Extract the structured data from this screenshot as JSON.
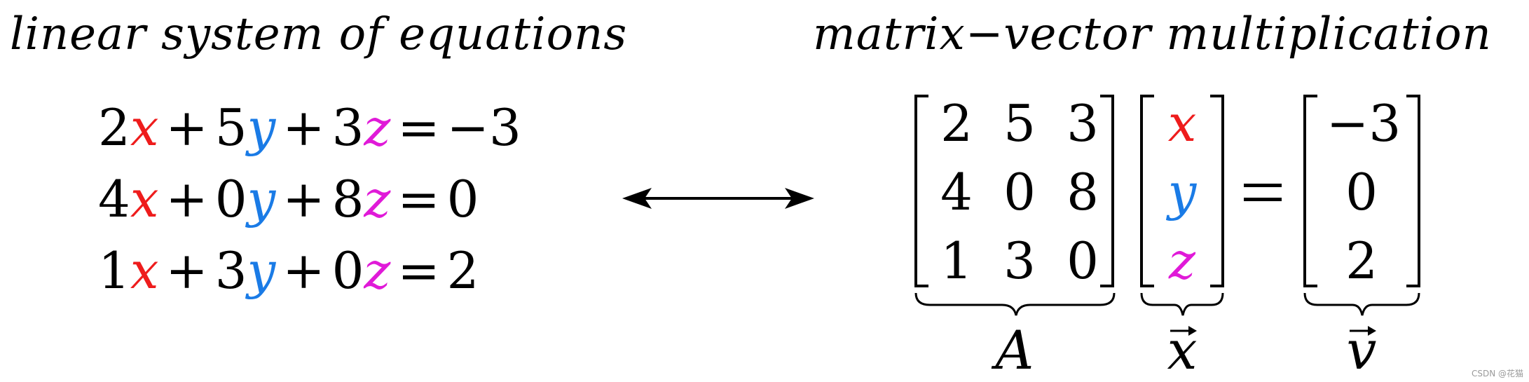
{
  "headings": {
    "left": "linear system of equations",
    "right": "matrix−vector multiplication"
  },
  "colors": {
    "x": "#ee1c1c",
    "y": "#1a7be6",
    "z": "#e01ad8",
    "text": "#000000"
  },
  "equations": [
    {
      "cx": "2",
      "vx": "x",
      "cy": "5",
      "vy": "y",
      "cz": "3",
      "vz": "z",
      "rhs": "−3"
    },
    {
      "cx": "4",
      "vx": "x",
      "cy": "0",
      "vy": "y",
      "cz": "8",
      "vz": "z",
      "rhs": "0"
    },
    {
      "cx": "1",
      "vx": "x",
      "cy": "3",
      "vy": "y",
      "cz": "0",
      "vz": "z",
      "rhs": "2"
    }
  ],
  "operators": {
    "plus": "+",
    "equals": "="
  },
  "matrix_A": [
    [
      "2",
      "5",
      "3"
    ],
    [
      "4",
      "0",
      "8"
    ],
    [
      "1",
      "3",
      "0"
    ]
  ],
  "vector_x": [
    "x",
    "y",
    "z"
  ],
  "vector_v": [
    "−3",
    "0",
    "2"
  ],
  "labels": {
    "A": "A",
    "x": "x",
    "v": "v"
  },
  "watermark": "CSDN @花猫"
}
